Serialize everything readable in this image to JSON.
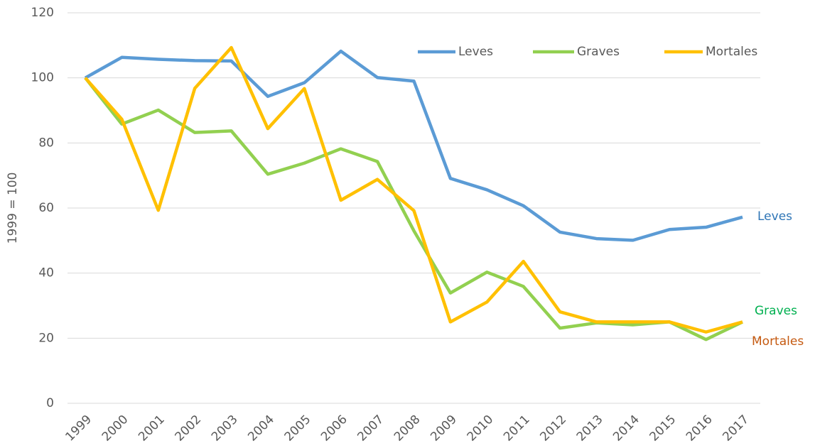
{
  "chart_data": {
    "type": "line",
    "y_label": "1999 = 100",
    "categories": [
      "1999",
      "2000",
      "2001",
      "2002",
      "2003",
      "2004",
      "2005",
      "2006",
      "2007",
      "2008",
      "2009",
      "2010",
      "2011",
      "2012",
      "2013",
      "2014",
      "2015",
      "2016",
      "2017"
    ],
    "series": [
      {
        "name": "Leves",
        "color": "#5b9bd5",
        "values": [
          100,
          106.3,
          105.7,
          105.3,
          105.2,
          94.3,
          98.5,
          108.2,
          100.1,
          99,
          69.1,
          65.6,
          60.7,
          52.6,
          50.6,
          50.1,
          53.4,
          54.1,
          57.2
        ]
      },
      {
        "name": "Graves",
        "color": "#92d050",
        "values": [
          100,
          85.8,
          90.1,
          83.2,
          83.7,
          70.4,
          73.8,
          78.2,
          74.3,
          53,
          33.9,
          40.3,
          35.9,
          23.1,
          24.7,
          24.1,
          25,
          19.6,
          25
        ]
      },
      {
        "name": "Mortales",
        "color": "#ffc000",
        "values": [
          100,
          87.3,
          59.3,
          96.8,
          109.3,
          84.4,
          96.7,
          62.4,
          68.8,
          59.2,
          25,
          31.1,
          43.6,
          28.1,
          25,
          25,
          25,
          21.9,
          25
        ]
      }
    ],
    "annotations": [
      {
        "text": "Leves",
        "color": "#2e75b6"
      },
      {
        "text": "Graves",
        "color": "#00b050"
      },
      {
        "text": "Mortales",
        "color": "#c55a11"
      }
    ],
    "ylim": [
      0,
      120
    ],
    "yticks": [
      0,
      20,
      40,
      60,
      80,
      100,
      120
    ],
    "grid": true,
    "legend": "top-right"
  }
}
